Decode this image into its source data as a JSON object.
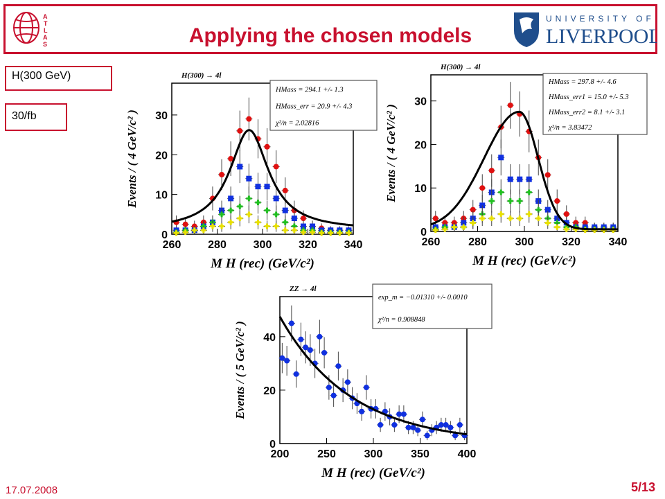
{
  "slide": {
    "title": "Applying the chosen models",
    "tags": [
      "H(300 GeV)",
      "30/fb"
    ],
    "date": "17.07.2008",
    "page": "5/13",
    "atlas_logo_letters": "ATLAS",
    "university_top": "UNIVERSITY OF",
    "university_name": "LIVERPOOL"
  },
  "colors": {
    "accent": "#c8102e",
    "uol_blue": "#1f4e8c",
    "red": "#e01010",
    "blue": "#1030e0",
    "green": "#20c020",
    "yellow": "#e8e000",
    "fit": "#000000"
  },
  "chart_data": [
    {
      "type": "scatter",
      "title": "H(300) → 4l",
      "xlabel": "M H (rec) (GeV/c²)",
      "ylabel": "Events / ( 4 GeV/c² )",
      "xlim": [
        260,
        340
      ],
      "ylim": [
        0,
        38
      ],
      "xticks": [
        260,
        280,
        300,
        320,
        340
      ],
      "yticks": [
        0,
        10,
        20,
        30
      ],
      "stats": [
        "HMass = 294.1 +/- 1.3",
        "HMass_err = 20.9 +/- 4.3",
        "χ²/n = 2.02816"
      ],
      "x": [
        262,
        266,
        270,
        274,
        278,
        282,
        286,
        290,
        294,
        298,
        302,
        306,
        310,
        314,
        318,
        322,
        326,
        330,
        334,
        338
      ],
      "series": [
        {
          "color": "red",
          "marker": "circle",
          "values": [
            3,
            2.5,
            2,
            3,
            9,
            15,
            19,
            26,
            29,
            24,
            22,
            17,
            11,
            6,
            4,
            2,
            1.5,
            1,
            1,
            1
          ]
        },
        {
          "color": "blue",
          "marker": "square",
          "values": [
            1,
            1,
            1,
            2,
            3,
            6,
            9,
            17,
            14,
            12,
            12,
            9,
            6,
            4,
            2,
            2,
            1,
            1,
            1,
            1
          ]
        },
        {
          "color": "green",
          "marker": "cross",
          "values": [
            0.5,
            1,
            1,
            2,
            3,
            5,
            6,
            7,
            9,
            8,
            6,
            5,
            3,
            2,
            1,
            1,
            0.5,
            0.5,
            0.5,
            0.5
          ]
        },
        {
          "color": "yellow",
          "marker": "cross",
          "values": [
            0.3,
            0.5,
            1,
            1,
            2,
            2,
            3,
            4,
            5,
            3,
            2,
            2,
            1,
            1,
            0.5,
            0.5,
            0.3,
            0.3,
            0.3,
            0.3
          ]
        }
      ],
      "fit": {
        "model": "breit-wigner",
        "mean": 294.1,
        "width": 20.9,
        "peak": 26.2,
        "base": 1.0
      }
    },
    {
      "type": "scatter",
      "title": "H(300) → 4l",
      "xlabel": "M H (rec) (GeV/c²)",
      "ylabel": "Events / ( 4 GeV/c² )",
      "xlim": [
        260,
        340
      ],
      "ylim": [
        0,
        36
      ],
      "xticks": [
        260,
        280,
        300,
        320,
        340
      ],
      "yticks": [
        0,
        10,
        20,
        30
      ],
      "stats": [
        "HMass = 297.8 +/- 4.6",
        "HMass_err1 = 15.0 +/- 5.3",
        "HMass_err2 = 8.1 +/- 3.1",
        "χ²/n = 3.83472"
      ],
      "x": [
        262,
        266,
        270,
        274,
        278,
        282,
        286,
        290,
        294,
        298,
        302,
        306,
        310,
        314,
        318,
        322,
        326,
        330,
        334,
        338
      ],
      "series": [
        {
          "color": "red",
          "marker": "circle",
          "values": [
            3,
            2,
            2,
            3,
            5,
            10,
            14,
            24,
            29,
            27,
            23,
            17,
            13,
            7,
            4,
            2,
            2,
            1,
            1,
            1
          ]
        },
        {
          "color": "blue",
          "marker": "square",
          "values": [
            1,
            1,
            1,
            2,
            3,
            6,
            9,
            17,
            12,
            12,
            12,
            7,
            5,
            3,
            2,
            1,
            1,
            1,
            1,
            1
          ]
        },
        {
          "color": "green",
          "marker": "cross",
          "values": [
            0.5,
            1,
            1,
            1,
            2,
            4,
            7,
            9,
            7,
            7,
            9,
            5,
            3,
            2,
            1,
            1,
            0.5,
            0.5,
            0.5,
            0.5
          ]
        },
        {
          "color": "yellow",
          "marker": "cross",
          "values": [
            0.3,
            0.5,
            1,
            1,
            2,
            3,
            3,
            4,
            3,
            3,
            4,
            3,
            2,
            1,
            0.5,
            0.5,
            0.3,
            0.3,
            0.3,
            0.3
          ]
        }
      ],
      "fit": {
        "model": "bifurcated-gaussian",
        "mean": 297.8,
        "sigma_left": 15.0,
        "sigma_right": 8.1,
        "peak": 27.5,
        "base": 0.5
      }
    },
    {
      "type": "scatter",
      "title": "ZZ → 4l",
      "xlabel": "M H (rec) (GeV/c²)",
      "ylabel": "Events / ( 5 GeV/c² )",
      "xlim": [
        200,
        400
      ],
      "ylim": [
        0,
        55
      ],
      "xticks": [
        200,
        250,
        300,
        350,
        400
      ],
      "yticks": [
        0,
        20,
        40
      ],
      "stats": [
        "exp_m = −0.01310 +/- 0.0010",
        "χ²/n = 0.908848"
      ],
      "x": [
        202.5,
        207.5,
        212.5,
        217.5,
        222.5,
        227.5,
        232.5,
        237.5,
        242.5,
        247.5,
        252.5,
        257.5,
        262.5,
        267.5,
        272.5,
        277.5,
        282.5,
        287.5,
        292.5,
        297.5,
        302.5,
        307.5,
        312.5,
        317.5,
        322.5,
        327.5,
        332.5,
        337.5,
        342.5,
        347.5,
        352.5,
        357.5,
        362.5,
        367.5,
        372.5,
        377.5,
        382.5,
        387.5,
        392.5,
        397.5
      ],
      "series": [
        {
          "color": "blue",
          "marker": "circle",
          "values": [
            32,
            31,
            45,
            26,
            39,
            36,
            35,
            30,
            40,
            34,
            21,
            18,
            29,
            20,
            23,
            17,
            15,
            12,
            21,
            13,
            13,
            7,
            12,
            10,
            7,
            11,
            11,
            6,
            6,
            5,
            9,
            3,
            5,
            6,
            7,
            7,
            6,
            3,
            7,
            3
          ]
        }
      ],
      "fit": {
        "model": "exponential",
        "A": 47.5,
        "slope": -0.0131,
        "x0": 200
      }
    }
  ]
}
